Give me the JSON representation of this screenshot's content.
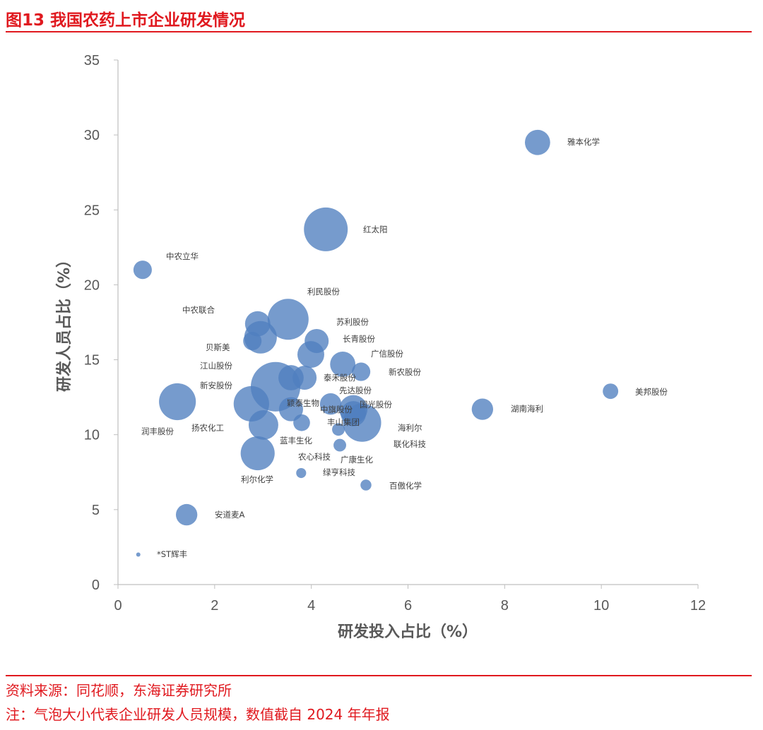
{
  "header": {
    "title": "图13  我国农药上市企业研发情况"
  },
  "footer": {
    "source": "资料来源：同花顺，东海证券研究所",
    "note": "注：气泡大小代表企业研发人员规模，数值截自 2024 年年报"
  },
  "colors": {
    "accent": "#e0191f",
    "bubble": "#4f7fbf",
    "axis": "#bfbfbf"
  },
  "chart_data": {
    "type": "scatter",
    "subtype": "bubble",
    "title": "",
    "xlabel": "研发投入占比（%）",
    "ylabel": "研发人员占比（%）",
    "xlim": [
      0,
      12
    ],
    "ylim": [
      0,
      35
    ],
    "xticks": [
      "0",
      "2",
      "4",
      "6",
      "8",
      "10",
      "12"
    ],
    "yticks": [
      "0",
      "5",
      "10",
      "15",
      "20",
      "25",
      "30",
      "35"
    ],
    "grid": false,
    "legend": "none",
    "size_note": "relative bubble size (R&D headcount scale, not printed)",
    "points": [
      {
        "name": "雅本化学",
        "x": 8.68,
        "y": 29.5,
        "size": 3.2
      },
      {
        "name": "红太阳",
        "x": 4.3,
        "y": 23.7,
        "size": 9.6
      },
      {
        "name": "中农立华",
        "x": 0.51,
        "y": 21.0,
        "size": 1.7
      },
      {
        "name": "利民股份",
        "x": 3.52,
        "y": 17.7,
        "size": 8.4
      },
      {
        "name": "中农联合",
        "x": 2.89,
        "y": 17.4,
        "size": 3.2
      },
      {
        "name": "贝斯美",
        "x": 2.78,
        "y": 16.25,
        "size": 1.7
      },
      {
        "name": "江山股份",
        "x": 2.95,
        "y": 16.5,
        "size": 5.3
      },
      {
        "name": "苏利股份",
        "x": 4.11,
        "y": 16.25,
        "size": 2.9
      },
      {
        "name": "长青股份",
        "x": 3.99,
        "y": 15.35,
        "size": 3.6
      },
      {
        "name": "广信股份",
        "x": 4.65,
        "y": 14.7,
        "size": 3.2
      },
      {
        "name": "新农股份",
        "x": 5.03,
        "y": 14.2,
        "size": 1.7
      },
      {
        "name": "泰禾股份",
        "x": 3.86,
        "y": 13.8,
        "size": 2.9
      },
      {
        "name": "先达股份",
        "x": 3.58,
        "y": 13.8,
        "size": 3.2
      },
      {
        "name": "新安股份",
        "x": 3.26,
        "y": 13.2,
        "size": 12.3
      },
      {
        "name": "扬农化工",
        "x": 2.76,
        "y": 12.06,
        "size": 6.3
      },
      {
        "name": "润丰股份",
        "x": 1.23,
        "y": 12.2,
        "size": 6.8
      },
      {
        "name": "颖泰生物",
        "x": 3.58,
        "y": 11.7,
        "size": 2.9
      },
      {
        "name": "中旗股份",
        "x": 4.4,
        "y": 12.05,
        "size": 2.3
      },
      {
        "name": "国光股份",
        "x": 4.87,
        "y": 11.7,
        "size": 4.0
      },
      {
        "name": "海利尔",
        "x": 4.87,
        "y": 11.4,
        "size": 3.2
      },
      {
        "name": "联化科技",
        "x": 5.05,
        "y": 10.8,
        "size": 7.3
      },
      {
        "name": "丰山集团",
        "x": 3.01,
        "y": 10.65,
        "size": 4.4
      },
      {
        "name": "蓝丰生化",
        "x": 3.8,
        "y": 10.8,
        "size": 1.4
      },
      {
        "name": "广康生化",
        "x": 4.56,
        "y": 10.35,
        "size": 0.8
      },
      {
        "name": "农心科技",
        "x": 4.59,
        "y": 9.3,
        "size": 0.8
      },
      {
        "name": "绿亨科技",
        "x": 3.79,
        "y": 7.44,
        "size": 0.5
      },
      {
        "name": "百傲化学",
        "x": 5.13,
        "y": 6.64,
        "size": 0.6
      },
      {
        "name": "利尔化学",
        "x": 2.89,
        "y": 8.76,
        "size": 5.8
      },
      {
        "name": "湖南海利",
        "x": 7.54,
        "y": 11.7,
        "size": 2.3
      },
      {
        "name": "美邦股份",
        "x": 10.19,
        "y": 12.9,
        "size": 1.2
      },
      {
        "name": "安道麦A",
        "x": 1.42,
        "y": 4.66,
        "size": 2.3
      },
      {
        "name": "*ST辉丰",
        "x": 0.42,
        "y": 2.0,
        "size": 0.09
      }
    ]
  }
}
